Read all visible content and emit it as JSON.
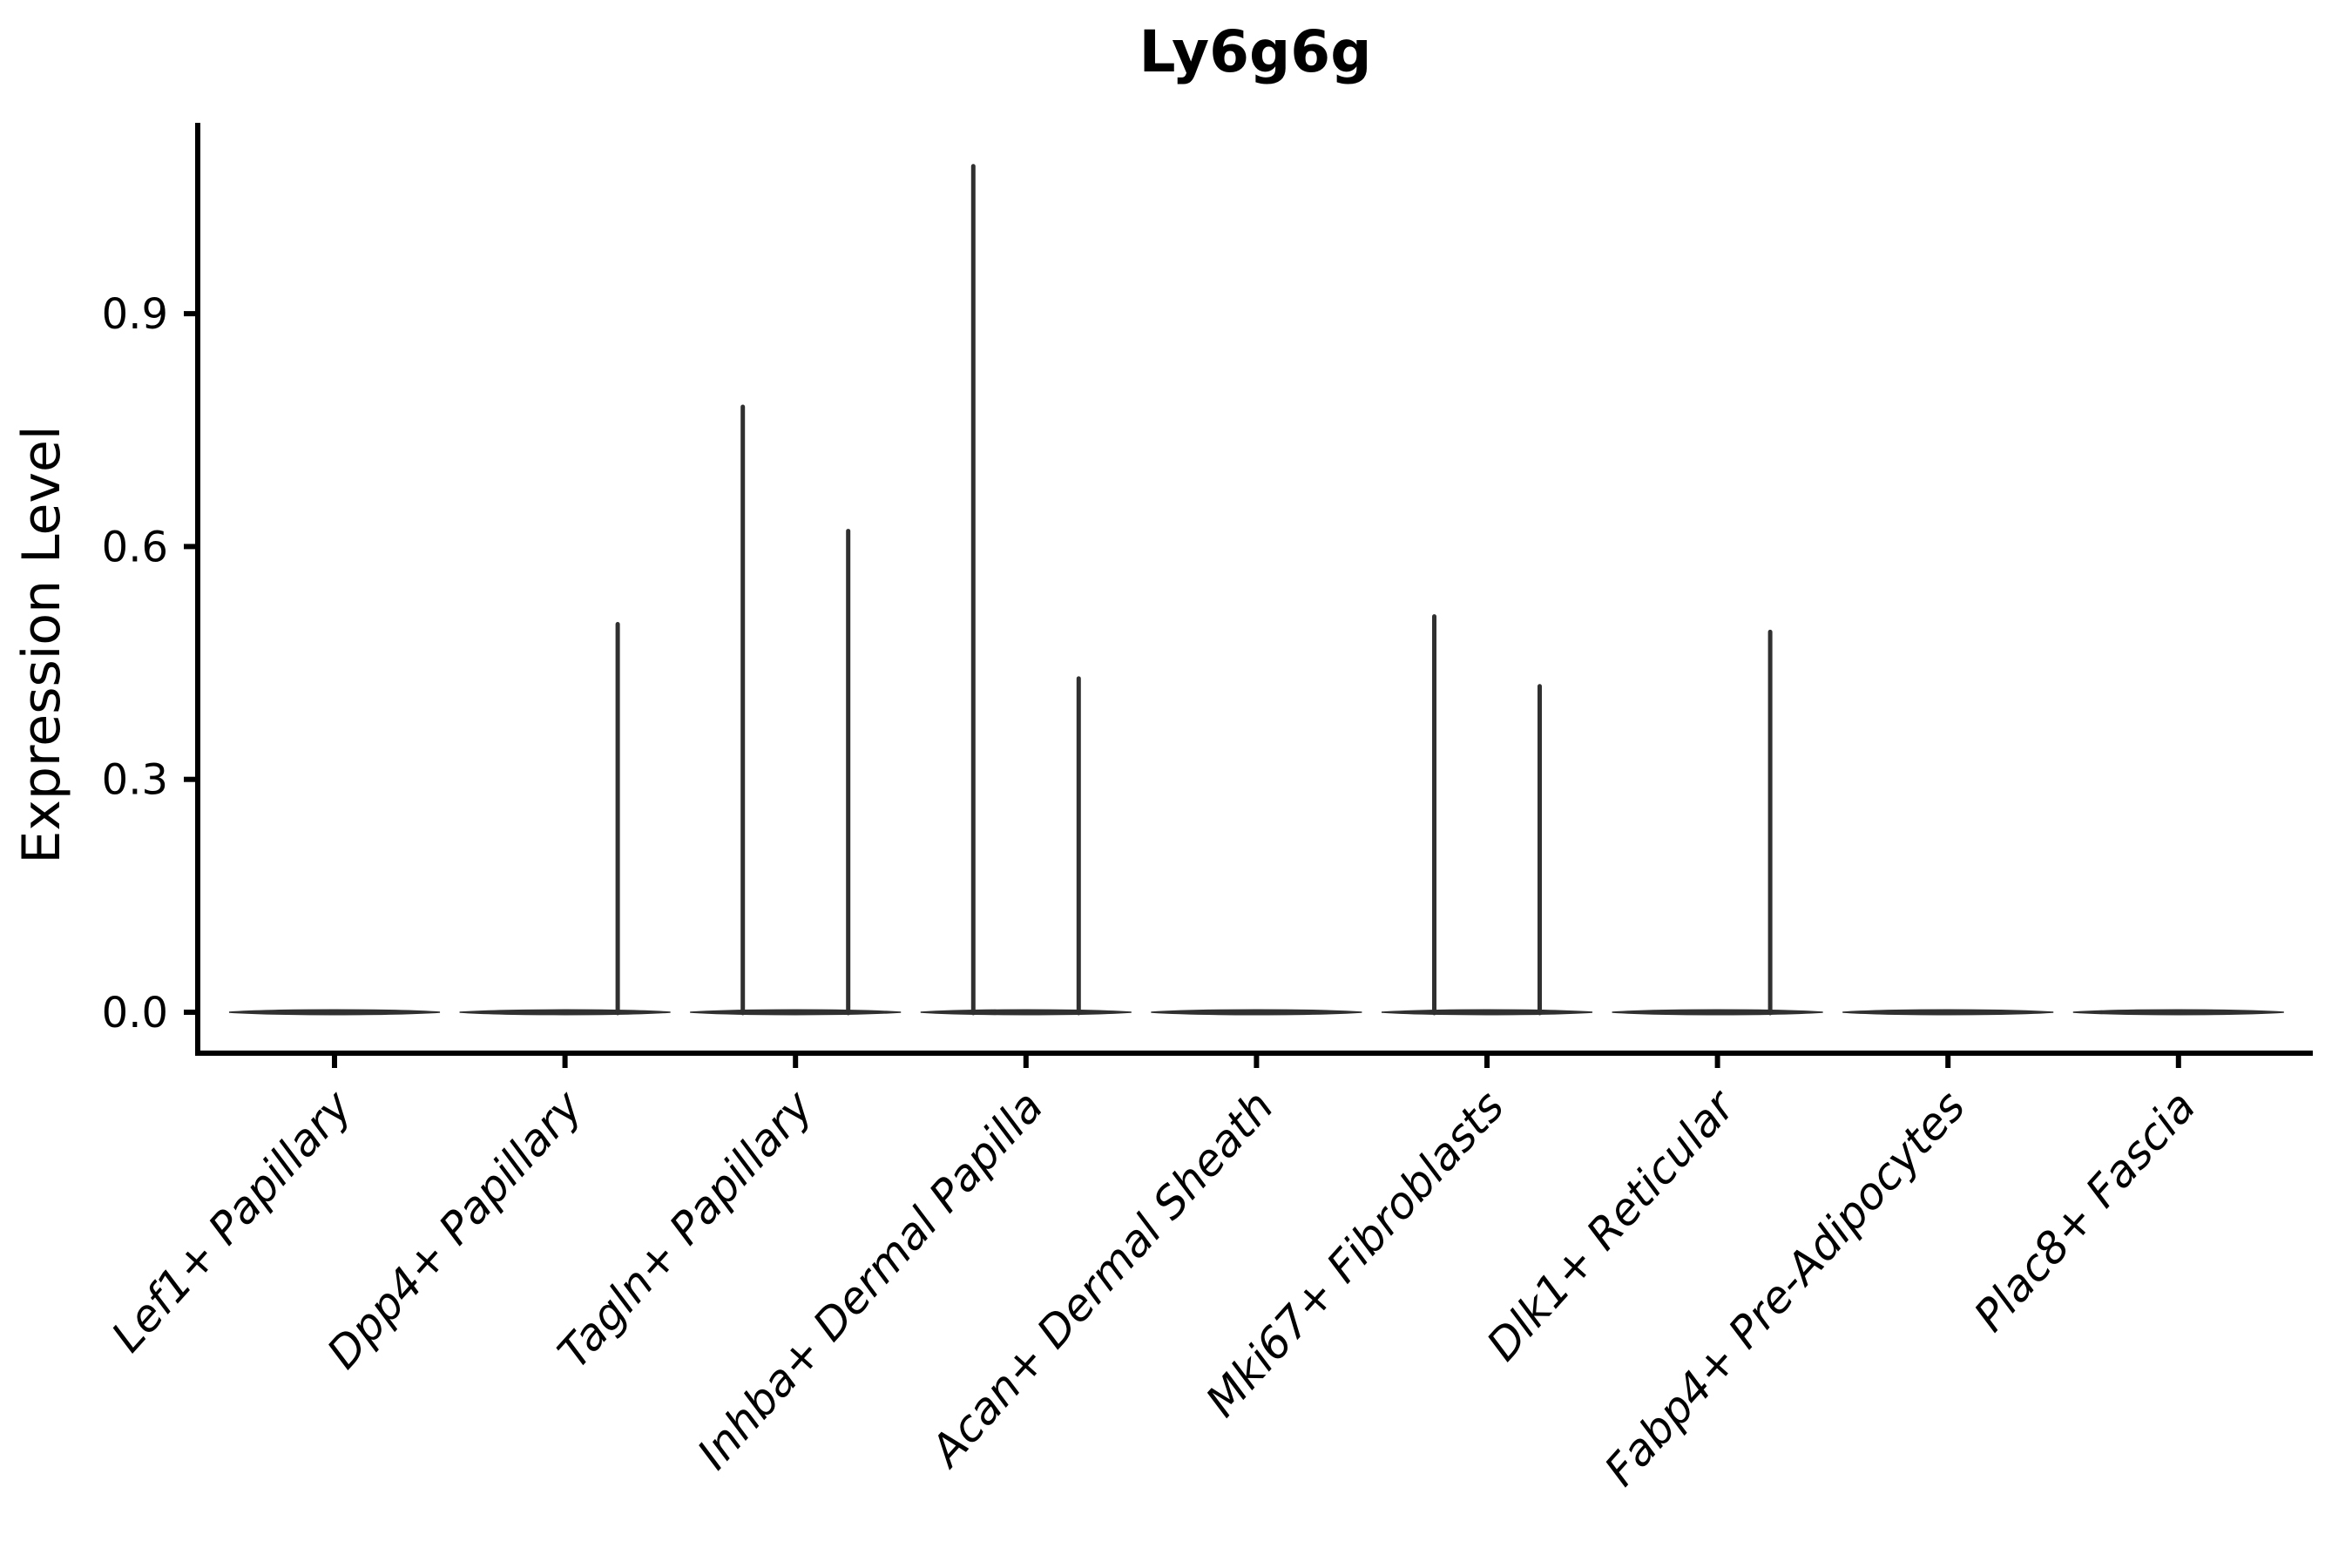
{
  "chart_data": {
    "type": "violin",
    "title": "Ly6g6g",
    "xlabel": "",
    "ylabel": "Expression Level",
    "yticks": [
      0,
      0.3,
      0.6,
      0.9
    ],
    "ytick_labels": [
      "0.0",
      "0.3",
      "0.6",
      "0.9"
    ],
    "ylim": [
      -0.05,
      1.17
    ],
    "grid": false,
    "legend": null,
    "categories": [
      "Lef1+ Papillary",
      "Dpp4+ Papillary",
      "Tagln+ Papillary",
      "Inhba+ Dermal Papilla",
      "Acan+ Dermal Sheath",
      "Mki67+ Fibroblasts",
      "Dlk1+ Reticular",
      "Fabp4+ Pre-Adipocytes",
      "Plac8+ Fascia"
    ],
    "violins": [
      {
        "category": "Lef1+ Papillary",
        "base_value": 0,
        "spikes": []
      },
      {
        "category": "Dpp4+ Papillary",
        "base_value": 0,
        "spikes": [
          {
            "side": "right",
            "max": 0.5
          }
        ]
      },
      {
        "category": "Tagln+ Papillary",
        "base_value": 0,
        "spikes": [
          {
            "side": "left",
            "max": 0.78
          },
          {
            "side": "right",
            "max": 0.62
          }
        ]
      },
      {
        "category": "Inhba+ Dermal Papilla",
        "base_value": 0,
        "spikes": [
          {
            "side": "left",
            "max": 1.09
          },
          {
            "side": "right",
            "max": 0.43
          }
        ]
      },
      {
        "category": "Acan+ Dermal Sheath",
        "base_value": 0,
        "spikes": []
      },
      {
        "category": "Mki67+ Fibroblasts",
        "base_value": 0,
        "spikes": [
          {
            "side": "left",
            "max": 0.51
          },
          {
            "side": "right",
            "max": 0.42
          }
        ]
      },
      {
        "category": "Dlk1+ Reticular",
        "base_value": 0,
        "spikes": [
          {
            "side": "right",
            "max": 0.49
          }
        ]
      },
      {
        "category": "Fabp4+ Pre-Adipocytes",
        "base_value": 0,
        "spikes": []
      },
      {
        "category": "Plac8+ Fascia",
        "base_value": 0,
        "spikes": []
      }
    ],
    "notes": "Expression is concentrated at 0 for every cluster (wide flat violin base); thin vertical spikes mark the maximum expression of rare expressing cells, positioned at a quarter of the slot width left/right of each category center."
  },
  "style": {
    "violin_color": "#303030",
    "axis_color": "#000000",
    "text_color": "#000000",
    "background": "#ffffff"
  }
}
